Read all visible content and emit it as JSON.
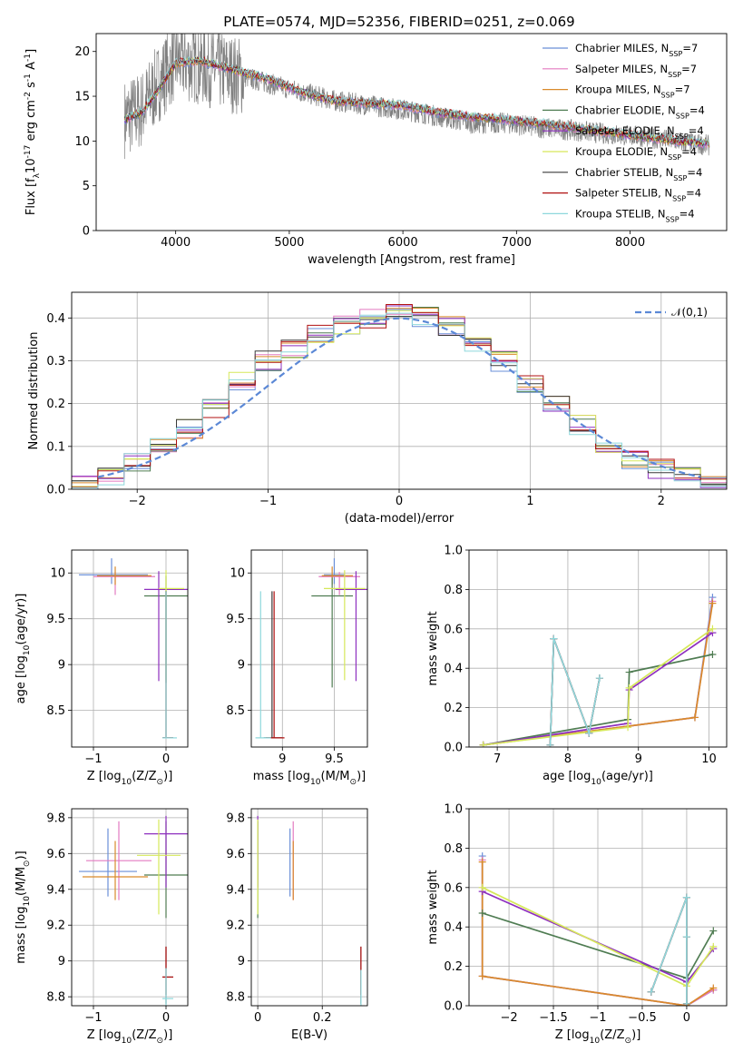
{
  "figure_title": "PLATE=0574, MJD=52356, FIBERID=0251, z=0.069",
  "series_colors": [
    "#6a8fd8",
    "#e37ac0",
    "#d98a2b",
    "#4f7c52",
    "#8e2fbf",
    "#d6e85a",
    "#3a3a3a",
    "#b01010",
    "#8ed8dc"
  ],
  "chart_data": [
    {
      "id": "spectrum",
      "type": "line",
      "title": "PLATE=0574, MJD=52356, FIBERID=0251, z=0.069",
      "xlabel": "wavelength [Angstrom, rest frame]",
      "ylabel": "Flux [f$_\\lambda$10$^{-17}$ erg cm$^{-2}$ s$^{-1}$ A$^{-1}$]",
      "xlim": [
        3300,
        8850
      ],
      "ylim": [
        0,
        22
      ],
      "xticks": [
        4000,
        5000,
        6000,
        7000,
        8000
      ],
      "yticks": [
        0,
        5,
        10,
        15,
        20
      ],
      "grid": false,
      "legend_position": "top-right",
      "data_color": "#808080",
      "x": [
        3550,
        3700,
        3850,
        4000,
        4200,
        4500,
        4800,
        5100,
        5400,
        5700,
        6000,
        6300,
        6600,
        6900,
        7200,
        7500,
        7800,
        8100,
        8400,
        8700
      ],
      "data_y": [
        12.5,
        13.5,
        16.5,
        19.0,
        18.5,
        17.5,
        16.5,
        15.5,
        14.5,
        14.0,
        13.5,
        12.8,
        12.0,
        12.0,
        11.5,
        11.2,
        10.8,
        10.5,
        10.0,
        9.5
      ],
      "model_y": [
        12.2,
        13.0,
        15.5,
        18.5,
        18.8,
        17.8,
        16.8,
        15.3,
        14.3,
        14.0,
        13.8,
        13.0,
        12.5,
        12.2,
        11.8,
        11.3,
        10.8,
        10.3,
        9.8,
        9.5
      ],
      "series": [
        {
          "name": "Chabrier MILES, N$_{SSP}$=7"
        },
        {
          "name": "Salpeter MILES, N$_{SSP}$=7"
        },
        {
          "name": "Kroupa MILES, N$_{SSP}$=7"
        },
        {
          "name": "Chabrier ELODIE, N$_{SSP}$=4"
        },
        {
          "name": "Salpeter ELODIE, N$_{SSP}$=4"
        },
        {
          "name": "Kroupa ELODIE, N$_{SSP}$=4"
        },
        {
          "name": "Chabrier STELIB, N$_{SSP}$=4"
        },
        {
          "name": "Salpeter STELIB, N$_{SSP}$=4"
        },
        {
          "name": "Kroupa STELIB, N$_{SSP}$=4"
        }
      ]
    },
    {
      "id": "residuals",
      "type": "line",
      "xlabel": "(data-model)/error",
      "ylabel": "Normed distribution",
      "xlim": [
        -2.5,
        2.5
      ],
      "ylim": [
        0,
        0.46
      ],
      "xticks": [
        -2,
        -1,
        0,
        1,
        2
      ],
      "yticks": [
        0.0,
        0.1,
        0.2,
        0.3,
        0.4
      ],
      "grid": true,
      "legend_position": "top-right",
      "reference_label": "$\\mathcal{N}(0,1)$",
      "bin_edges": [
        -2.5,
        -2.3,
        -2.1,
        -1.9,
        -1.7,
        -1.5,
        -1.3,
        -1.1,
        -0.9,
        -0.7,
        -0.5,
        -0.3,
        -0.1,
        0.1,
        0.3,
        0.5,
        0.7,
        0.9,
        1.1,
        1.3,
        1.5,
        1.7,
        1.9,
        2.1,
        2.3,
        2.5
      ],
      "hist_values": [
        0.025,
        0.03,
        0.06,
        0.1,
        0.14,
        0.19,
        0.25,
        0.3,
        0.33,
        0.36,
        0.38,
        0.4,
        0.42,
        0.4,
        0.38,
        0.34,
        0.3,
        0.25,
        0.2,
        0.15,
        0.1,
        0.07,
        0.05,
        0.035,
        0.025
      ]
    },
    {
      "id": "age-vs-z",
      "type": "scatter",
      "xlabel": "Z [log$_{10}$($Z/Z_\\odot$)]",
      "ylabel": "age  [log$_{10}$($age/yr$)]",
      "xlim": [
        -1.3,
        0.3
      ],
      "ylim": [
        8.1,
        10.25
      ],
      "xticks": [
        -1,
        0
      ],
      "yticks": [
        8.5,
        9.0,
        9.5,
        10.0
      ],
      "grid": true,
      "points": [
        {
          "x": -0.75,
          "y": 9.98,
          "xerr": [
            0.45,
            0.5
          ],
          "yerr": [
            0.1,
            0.18
          ]
        },
        {
          "x": -0.7,
          "y": 9.96,
          "xerr": [
            0.3,
            0.55
          ],
          "yerr": [
            0.2,
            0.05
          ]
        },
        {
          "x": -0.7,
          "y": 9.97,
          "xerr": [
            0.25,
            0.5
          ],
          "yerr": [
            0.1,
            0.1
          ]
        },
        {
          "x": 0.0,
          "y": 9.75,
          "xerr": [
            0.3,
            0.3
          ],
          "yerr": [
            0.95,
            0.22
          ]
        },
        {
          "x": -0.1,
          "y": 9.82,
          "xerr": [
            0.2,
            0.4
          ],
          "yerr": [
            1.0,
            0.2
          ]
        },
        {
          "x": 0.0,
          "y": 9.83,
          "xerr": [
            0.1,
            0.25
          ],
          "yerr": [
            1.0,
            0.2
          ]
        },
        {
          "x": 0.0,
          "y": 8.2,
          "xerr": [
            0.05,
            0.1
          ],
          "yerr": [
            0.0,
            1.6
          ]
        },
        {
          "x": 0.0,
          "y": 8.2,
          "xerr": [
            0.05,
            0.1
          ],
          "yerr": [
            0.0,
            1.6
          ]
        },
        {
          "x": 0.0,
          "y": 8.2,
          "xerr": [
            0.05,
            0.15
          ],
          "yerr": [
            0.0,
            1.6
          ]
        }
      ]
    },
    {
      "id": "age-vs-mass",
      "type": "scatter",
      "xlabel": "mass [log$_{10}$($M/M_\\odot$)]",
      "ylabel": "",
      "xlim": [
        8.7,
        9.82
      ],
      "ylim": [
        8.1,
        10.25
      ],
      "xticks": [
        9.0,
        9.5
      ],
      "yticks": [
        8.5,
        9.0,
        9.5,
        10.0
      ],
      "grid": true,
      "points": [
        {
          "x": 9.5,
          "y": 9.98,
          "xerr": [
            0.1,
            0.1
          ],
          "yerr": [
            0.1,
            0.18
          ]
        },
        {
          "x": 9.55,
          "y": 9.96,
          "xerr": [
            0.2,
            0.2
          ],
          "yerr": [
            0.2,
            0.05
          ]
        },
        {
          "x": 9.48,
          "y": 9.97,
          "xerr": [
            0.1,
            0.2
          ],
          "yerr": [
            0.1,
            0.1
          ]
        },
        {
          "x": 9.48,
          "y": 9.75,
          "xerr": [
            0.2,
            0.2
          ],
          "yerr": [
            1.0,
            0.2
          ]
        },
        {
          "x": 9.71,
          "y": 9.82,
          "xerr": [
            0.2,
            0.2
          ],
          "yerr": [
            1.0,
            0.2
          ]
        },
        {
          "x": 9.6,
          "y": 9.83,
          "xerr": [
            0.2,
            0.2
          ],
          "yerr": [
            1.0,
            0.2
          ]
        },
        {
          "x": 8.9,
          "y": 8.2,
          "xerr": [
            0.08,
            0.1
          ],
          "yerr": [
            0.0,
            1.6
          ]
        },
        {
          "x": 8.92,
          "y": 8.2,
          "xerr": [
            0.08,
            0.1
          ],
          "yerr": [
            0.0,
            1.6
          ]
        },
        {
          "x": 8.79,
          "y": 8.2,
          "xerr": [
            0.05,
            0.1
          ],
          "yerr": [
            0.0,
            1.6
          ]
        }
      ]
    },
    {
      "id": "weight-vs-age",
      "type": "line",
      "xlabel": "age  [log$_{10}$($age/yr$)]",
      "ylabel": "mass weight",
      "xlim": [
        6.6,
        10.25
      ],
      "ylim": [
        0,
        1.0
      ],
      "xticks": [
        7,
        8,
        9,
        10
      ],
      "yticks": [
        0.0,
        0.2,
        0.4,
        0.6,
        0.8,
        1.0
      ],
      "grid": true,
      "series_points": [
        {
          "x": [
            6.8,
            9.8,
            10.05
          ],
          "y": [
            0.01,
            0.15,
            0.76
          ]
        },
        {
          "x": [
            6.8,
            9.8,
            10.05
          ],
          "y": [
            0.01,
            0.15,
            0.74
          ]
        },
        {
          "x": [
            6.8,
            9.8,
            10.05
          ],
          "y": [
            0.01,
            0.15,
            0.73
          ]
        },
        {
          "x": [
            6.8,
            8.85,
            8.87,
            10.05
          ],
          "y": [
            0.01,
            0.14,
            0.38,
            0.47
          ]
        },
        {
          "x": [
            6.8,
            8.85,
            8.87,
            10.05
          ],
          "y": [
            0.01,
            0.12,
            0.29,
            0.58
          ]
        },
        {
          "x": [
            6.8,
            8.85,
            8.87,
            10.05
          ],
          "y": [
            0.01,
            0.1,
            0.3,
            0.6
          ]
        },
        {
          "x": [
            7.75,
            7.8,
            8.3,
            8.45
          ],
          "y": [
            0.01,
            0.55,
            0.07,
            0.35
          ]
        },
        {
          "x": [
            7.75,
            7.8,
            8.3,
            8.45
          ],
          "y": [
            0.01,
            0.55,
            0.07,
            0.35
          ]
        },
        {
          "x": [
            7.75,
            7.8,
            8.3,
            8.45
          ],
          "y": [
            0.01,
            0.55,
            0.07,
            0.35
          ]
        }
      ]
    },
    {
      "id": "mass-vs-z",
      "type": "scatter",
      "xlabel": "Z [log$_{10}$($Z/Z_\\odot$)]",
      "ylabel": "mass [log$_{10}$($M/M_\\odot$)]",
      "xlim": [
        -1.3,
        0.3
      ],
      "ylim": [
        8.75,
        9.85
      ],
      "xticks": [
        -1,
        0
      ],
      "yticks": [
        8.8,
        9.0,
        9.2,
        9.4,
        9.6,
        9.8
      ],
      "grid": true,
      "points": [
        {
          "x": -0.8,
          "y": 9.5,
          "xerr": [
            0.4,
            0.4
          ],
          "yerr": [
            0.14,
            0.24
          ]
        },
        {
          "x": -0.65,
          "y": 9.56,
          "xerr": [
            0.45,
            0.45
          ],
          "yerr": [
            0.22,
            0.22
          ]
        },
        {
          "x": -0.7,
          "y": 9.47,
          "xerr": [
            0.45,
            0.45
          ],
          "yerr": [
            0.13,
            0.2
          ]
        },
        {
          "x": 0.0,
          "y": 9.48,
          "xerr": [
            0.3,
            0.3
          ],
          "yerr": [
            0.24,
            0.3
          ]
        },
        {
          "x": 0.0,
          "y": 9.71,
          "xerr": [
            0.3,
            0.3
          ],
          "yerr": [
            0.3,
            0.1
          ]
        },
        {
          "x": -0.1,
          "y": 9.59,
          "xerr": [
            0.3,
            0.3
          ],
          "yerr": [
            0.33,
            0.2
          ]
        },
        {
          "x": 0.0,
          "y": 8.91,
          "xerr": [
            0.05,
            0.1
          ],
          "yerr": [
            0.15,
            0.17
          ]
        },
        {
          "x": 0.0,
          "y": 8.91,
          "xerr": [
            0.05,
            0.1
          ],
          "yerr": [
            0.1,
            0.17
          ]
        },
        {
          "x": 0.0,
          "y": 8.79,
          "xerr": [
            0.05,
            0.1
          ],
          "yerr": [
            0.05,
            0.17
          ]
        }
      ]
    },
    {
      "id": "mass-vs-ebv",
      "type": "scatter",
      "xlabel": "E(B-V)",
      "ylabel": "",
      "xlim": [
        -0.02,
        0.34
      ],
      "ylim": [
        8.75,
        9.85
      ],
      "xticks": [
        0.0,
        0.2
      ],
      "yticks": [
        8.8,
        9.0,
        9.2,
        9.4,
        9.6,
        9.8
      ],
      "grid": true,
      "points": [
        {
          "x": 0.1,
          "y": 9.5,
          "xerr": [
            0,
            0
          ],
          "yerr": [
            0.14,
            0.24
          ]
        },
        {
          "x": 0.11,
          "y": 9.56,
          "xerr": [
            0,
            0
          ],
          "yerr": [
            0.22,
            0.22
          ]
        },
        {
          "x": 0.11,
          "y": 9.47,
          "xerr": [
            0,
            0
          ],
          "yerr": [
            0.13,
            0.2
          ]
        },
        {
          "x": 0.0,
          "y": 9.48,
          "xerr": [
            0,
            0
          ],
          "yerr": [
            0.24,
            0.3
          ]
        },
        {
          "x": 0.0,
          "y": 9.71,
          "xerr": [
            0,
            0
          ],
          "yerr": [
            0.3,
            0.1
          ]
        },
        {
          "x": 0.0,
          "y": 9.59,
          "xerr": [
            0,
            0
          ],
          "yerr": [
            0.33,
            0.2
          ]
        },
        {
          "x": 0.32,
          "y": 8.91,
          "xerr": [
            0,
            0
          ],
          "yerr": [
            0.15,
            0.17
          ]
        },
        {
          "x": 0.32,
          "y": 8.91,
          "xerr": [
            0,
            0
          ],
          "yerr": [
            0.1,
            0.17
          ]
        },
        {
          "x": 0.32,
          "y": 8.85,
          "xerr": [
            0,
            0
          ],
          "yerr": [
            0.1,
            0.1
          ]
        }
      ]
    },
    {
      "id": "weight-vs-z",
      "type": "line",
      "xlabel": "Z [log$_{10}$($Z/Z_\\odot$)]",
      "ylabel": "mass weight",
      "xlim": [
        -2.45,
        0.45
      ],
      "ylim": [
        0,
        1.0
      ],
      "xticks": [
        -2.0,
        -1.5,
        -1.0,
        -0.5,
        0.0
      ],
      "yticks": [
        0.0,
        0.2,
        0.4,
        0.6,
        0.8,
        1.0
      ],
      "grid": true,
      "series_points": [
        {
          "x": [
            -2.3,
            -2.3,
            0.0,
            0.3
          ],
          "y": [
            0.76,
            0.15,
            0.0,
            0.08
          ]
        },
        {
          "x": [
            -2.3,
            -2.3,
            0.0,
            0.3
          ],
          "y": [
            0.74,
            0.15,
            0.0,
            0.08
          ]
        },
        {
          "x": [
            -2.3,
            -2.3,
            0.0,
            0.3
          ],
          "y": [
            0.73,
            0.15,
            0.0,
            0.09
          ]
        },
        {
          "x": [
            -2.3,
            0.0,
            0.3
          ],
          "y": [
            0.47,
            0.14,
            0.38
          ]
        },
        {
          "x": [
            -2.3,
            0.0,
            0.3
          ],
          "y": [
            0.58,
            0.12,
            0.29
          ]
        },
        {
          "x": [
            -2.3,
            0.0,
            0.3
          ],
          "y": [
            0.6,
            0.1,
            0.3
          ]
        },
        {
          "x": [
            -0.4,
            0.0,
            0.0,
            0.0
          ],
          "y": [
            0.07,
            0.55,
            0.01,
            0.35
          ]
        },
        {
          "x": [
            -0.4,
            0.0,
            0.0,
            0.0
          ],
          "y": [
            0.07,
            0.55,
            0.01,
            0.35
          ]
        },
        {
          "x": [
            -0.4,
            0.0,
            0.0,
            0.0
          ],
          "y": [
            0.07,
            0.55,
            0.01,
            0.35
          ]
        }
      ]
    }
  ]
}
